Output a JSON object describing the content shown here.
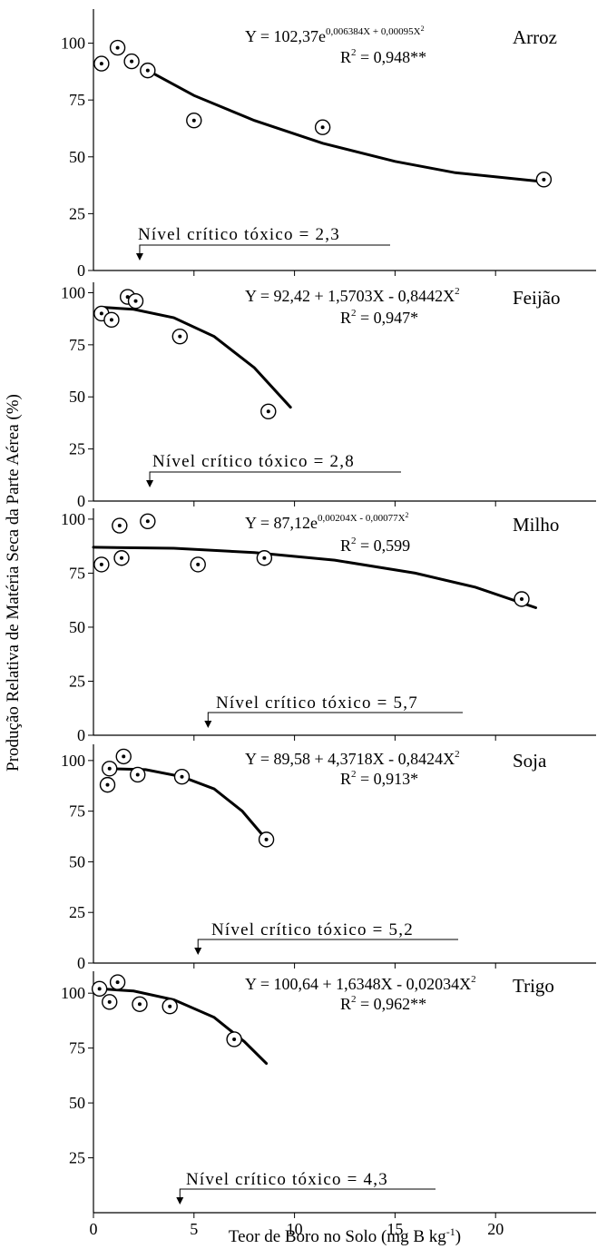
{
  "figure": {
    "ylabel": "Produção Relativa de Matéria Seca da Parte Aérea (%)",
    "xlabel_main": "Teor de Boro no Solo (mg B kg",
    "xlabel_sup": "-1",
    "xlabel_end": ")"
  },
  "chart_data": [
    {
      "type": "scatter",
      "crop": "Arroz",
      "eq_parts": [
        "Y = 102,37e",
        "0,006384X + 0,00095X",
        "2",
        ""
      ],
      "r2_value": "= 0,948**",
      "critical_label": "Nível crítico tóxico = 2,3",
      "critical_value": 2.3,
      "xlim": [
        0,
        25
      ],
      "ylim": [
        0,
        115
      ],
      "yticks": [
        0,
        25,
        50,
        75,
        100
      ],
      "points": [
        [
          0.4,
          91
        ],
        [
          1.2,
          98
        ],
        [
          1.9,
          92
        ],
        [
          2.7,
          88
        ],
        [
          5.0,
          66
        ],
        [
          11.4,
          63
        ],
        [
          22.4,
          40
        ]
      ],
      "curve": [
        [
          2.7,
          88
        ],
        [
          5.0,
          77
        ],
        [
          8.0,
          66
        ],
        [
          11.4,
          56
        ],
        [
          15.0,
          48
        ],
        [
          18.0,
          43
        ],
        [
          22.4,
          39
        ]
      ]
    },
    {
      "type": "scatter",
      "crop": "Feijão",
      "eq_parts": [
        "Y = 92,42 + 1,5703X - 0,8442X",
        "",
        "2",
        ""
      ],
      "r2_value": "= 0,947*",
      "critical_label": "Nível crítico tóxico = 2,8",
      "critical_value": 2.8,
      "xlim": [
        0,
        25
      ],
      "ylim": [
        0,
        105
      ],
      "yticks": [
        0,
        25,
        50,
        75,
        100
      ],
      "points": [
        [
          0.4,
          90
        ],
        [
          0.9,
          87
        ],
        [
          1.7,
          98
        ],
        [
          2.1,
          96
        ],
        [
          4.3,
          79
        ],
        [
          8.7,
          43
        ]
      ],
      "curve": [
        [
          0.4,
          93
        ],
        [
          2.0,
          92
        ],
        [
          4.0,
          88
        ],
        [
          6.0,
          79
        ],
        [
          8.0,
          64
        ],
        [
          9.8,
          45
        ]
      ]
    },
    {
      "type": "scatter",
      "crop": "Milho",
      "eq_parts": [
        "Y = 87,12e",
        "0,00204X - 0,00077X",
        "2",
        ""
      ],
      "r2_value": "= 0,599",
      "critical_label": "Nível crítico tóxico = 5,7",
      "critical_value": 5.7,
      "xlim": [
        0,
        25
      ],
      "ylim": [
        0,
        105
      ],
      "yticks": [
        0,
        25,
        50,
        75,
        100
      ],
      "points": [
        [
          0.4,
          79
        ],
        [
          1.3,
          97
        ],
        [
          1.4,
          82
        ],
        [
          2.7,
          99
        ],
        [
          5.2,
          79
        ],
        [
          8.5,
          82
        ],
        [
          21.3,
          63
        ]
      ],
      "curve": [
        [
          0.0,
          87
        ],
        [
          4.0,
          86.5
        ],
        [
          8.0,
          84.5
        ],
        [
          12.0,
          81
        ],
        [
          16.0,
          75
        ],
        [
          19.0,
          68.5
        ],
        [
          22.0,
          59
        ]
      ]
    },
    {
      "type": "scatter",
      "crop": "Soja",
      "eq_parts": [
        "Y = 89,58 + 4,3718X - 0,8424X",
        "",
        "2",
        ""
      ],
      "r2_value": "= 0,913*",
      "critical_label": "Nível crítico tóxico = 5,2",
      "critical_value": 5.2,
      "xlim": [
        0,
        25
      ],
      "ylim": [
        0,
        108
      ],
      "yticks": [
        0,
        25,
        50,
        75,
        100
      ],
      "points": [
        [
          0.7,
          88
        ],
        [
          0.8,
          96
        ],
        [
          1.5,
          102
        ],
        [
          2.2,
          93
        ],
        [
          4.4,
          92
        ],
        [
          8.6,
          61
        ]
      ],
      "curve": [
        [
          0.8,
          96
        ],
        [
          2.6,
          95.5
        ],
        [
          4.4,
          92
        ],
        [
          6.0,
          86
        ],
        [
          7.4,
          75
        ],
        [
          8.6,
          61
        ]
      ]
    },
    {
      "type": "scatter",
      "crop": "Trigo",
      "eq_parts": [
        "Y = 100,64 + 1,6348X - 0,02034X",
        "",
        "2",
        ""
      ],
      "r2_value": "= 0,962**",
      "critical_label": "Nível crítico tóxico = 4,3",
      "critical_value": 4.3,
      "xlim": [
        0,
        25
      ],
      "ylim": [
        0,
        110
      ],
      "yticks": [
        25,
        50,
        75,
        100
      ],
      "xticks": [
        0,
        5,
        10,
        15,
        20
      ],
      "points": [
        [
          0.3,
          102
        ],
        [
          0.8,
          96
        ],
        [
          1.2,
          105
        ],
        [
          2.3,
          95
        ],
        [
          3.8,
          94
        ],
        [
          7.0,
          79
        ]
      ],
      "curve": [
        [
          0.3,
          102
        ],
        [
          2.0,
          101
        ],
        [
          4.0,
          97
        ],
        [
          6.0,
          89
        ],
        [
          7.5,
          78
        ],
        [
          8.6,
          68
        ]
      ]
    }
  ]
}
